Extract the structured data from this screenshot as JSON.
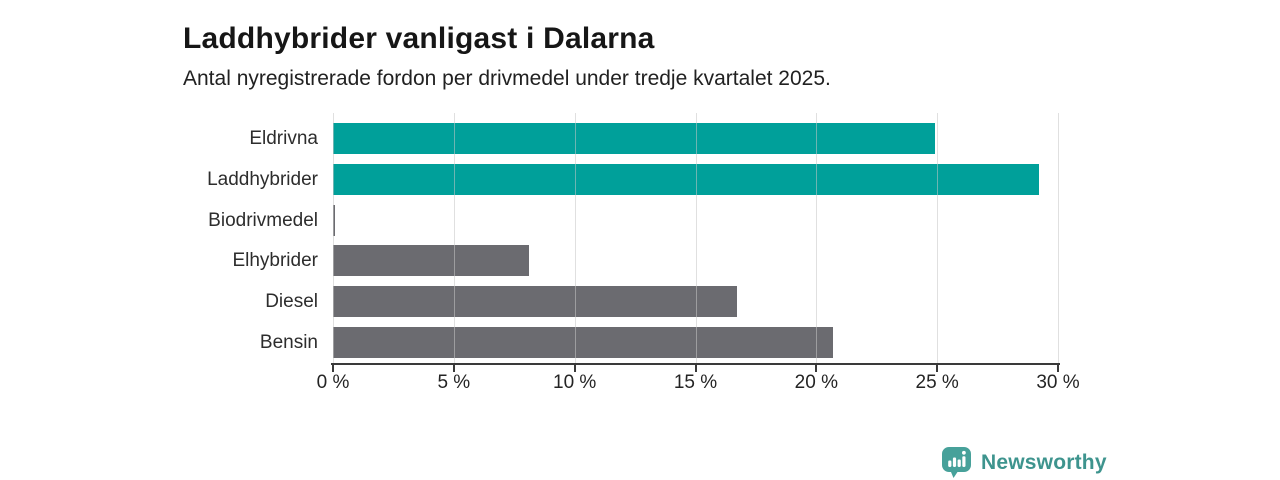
{
  "title": "Laddhybrider vanligast i Dalarna",
  "subtitle": "Antal nyregistrerade fordon per drivmedel under tredje kvartalet 2025.",
  "chart_data": {
    "type": "bar",
    "orientation": "horizontal",
    "title": "Laddhybrider vanligast i Dalarna",
    "subtitle": "Antal nyregistrerade fordon per drivmedel under tredje kvartalet 2025.",
    "categories": [
      "Eldrivna",
      "Laddhybrider",
      "Biodrivmedel",
      "Elhybrider",
      "Diesel",
      "Bensin"
    ],
    "values": [
      24.9,
      29.2,
      0.1,
      8.1,
      16.7,
      20.7
    ],
    "unit": "%",
    "xlim": [
      0,
      30
    ],
    "x_tick_labels": [
      "0 %",
      "5 %",
      "10 %",
      "15 %",
      "20 %",
      "25 %",
      "30 %"
    ],
    "x_tick_values": [
      0,
      5,
      10,
      15,
      20,
      25,
      30
    ],
    "bar_colors": [
      "#00a09a",
      "#00a09a",
      "#6b6b70",
      "#6b6b70",
      "#6b6b70",
      "#6b6b70"
    ],
    "highlight_color": "#00a09a",
    "default_color": "#6b6b70",
    "grid": true,
    "legend": false
  },
  "branding": {
    "logo_text": "Newsworthy",
    "logo_text_color": "#3e948e",
    "logo_icon_color": "#47a19a",
    "logo_icon": "bar-chart-speech-bubble-icon"
  }
}
